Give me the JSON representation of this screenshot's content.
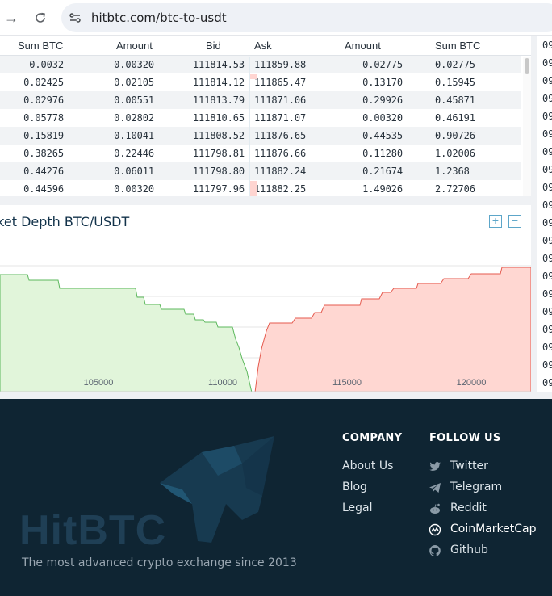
{
  "browser": {
    "url": "hitbtc.com/btc-to-usdt",
    "back_icon": "arrow-right-icon",
    "reload_icon": "reload-icon"
  },
  "orderbook": {
    "headers": {
      "sum_bid": "Sum BTC",
      "amount_bid": "Amount",
      "bid": "Bid",
      "ask": "Ask",
      "amount_ask": "Amount",
      "sum_ask": "Sum BTC"
    },
    "rows": [
      {
        "sum_bid": "0.0032",
        "amount_bid": "0.00320",
        "bid": "111814.53",
        "ask": "111859.88",
        "amount_ask": "0.02775",
        "sum_ask": "0.02775"
      },
      {
        "sum_bid": "0.02425",
        "amount_bid": "0.02105",
        "bid": "111814.12",
        "ask": "111865.47",
        "amount_ask": "0.13170",
        "sum_ask": "0.15945"
      },
      {
        "sum_bid": "0.02976",
        "amount_bid": "0.00551",
        "bid": "111813.79",
        "ask": "111871.06",
        "amount_ask": "0.29926",
        "sum_ask": "0.45871"
      },
      {
        "sum_bid": "0.05778",
        "amount_bid": "0.02802",
        "bid": "111810.65",
        "ask": "111871.07",
        "amount_ask": "0.00320",
        "sum_ask": "0.46191"
      },
      {
        "sum_bid": "0.15819",
        "amount_bid": "0.10041",
        "bid": "111808.52",
        "ask": "111876.65",
        "amount_ask": "0.44535",
        "sum_ask": "0.90726"
      },
      {
        "sum_bid": "0.38265",
        "amount_bid": "0.22446",
        "bid": "111798.81",
        "ask": "111876.66",
        "amount_ask": "0.11280",
        "sum_ask": "1.02006"
      },
      {
        "sum_bid": "0.44276",
        "amount_bid": "0.06011",
        "bid": "111798.80",
        "ask": "111882.24",
        "amount_ask": "0.21674",
        "sum_ask": "1.2368"
      },
      {
        "sum_bid": "0.44596",
        "amount_bid": "0.00320",
        "bid": "111797.96",
        "ask": "111882.25",
        "amount_ask": "1.49026",
        "sum_ask": "2.72706"
      }
    ]
  },
  "side_column": [
    "09",
    "09",
    "09",
    "09",
    "09",
    "09",
    "09",
    "09",
    "09",
    "09",
    "09",
    "09",
    "09",
    "09",
    "09",
    "09",
    "09",
    "09",
    "09",
    "09"
  ],
  "depth": {
    "title": "Market Depth BTC/USDT",
    "expand_icon": "plus-square-icon",
    "collapse_icon": "minus-square-icon",
    "x_ticks": [
      "105000",
      "110000",
      "115000",
      "120000"
    ],
    "colors": {
      "bid_fill": "#dff5d8",
      "bid_line": "#5cb85c",
      "ask_fill": "#ffd9d4",
      "ask_line": "#e55a4e"
    }
  },
  "footer": {
    "logo": "HitBTC",
    "tagline": "The most advanced crypto exchange since 2013",
    "company_heading": "COMPANY",
    "company_links": [
      "About Us",
      "Blog",
      "Legal"
    ],
    "follow_heading": "FOLLOW US",
    "follow_links": [
      {
        "label": "Twitter",
        "icon": "twitter-icon"
      },
      {
        "label": "Telegram",
        "icon": "telegram-icon"
      },
      {
        "label": "Reddit",
        "icon": "reddit-icon"
      },
      {
        "label": "CoinMarketCap",
        "icon": "coinmarketcap-icon"
      },
      {
        "label": "Github",
        "icon": "github-icon"
      }
    ]
  }
}
